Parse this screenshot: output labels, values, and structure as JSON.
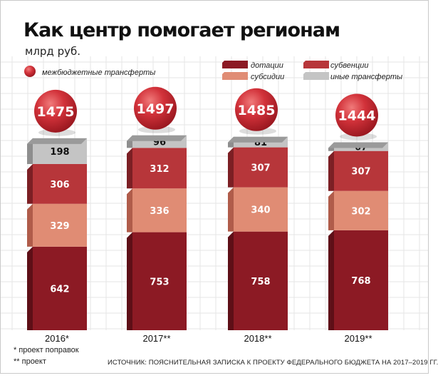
{
  "header": {
    "title": "Как центр помогает регионам",
    "subtitle": "млрд руб."
  },
  "legend": {
    "total": "межбюджетные трансферты",
    "dotacii": "дотации",
    "subvencii": "субвенции",
    "subsidii": "субсидии",
    "inye": "иные трансферты"
  },
  "colors": {
    "dotacii": "#8c1a24",
    "subsidii": "#e08c74",
    "subvencii": "#b7363a",
    "inye": "#c4c4c4",
    "total_circle": "#c0262d"
  },
  "chart_data": {
    "type": "bar",
    "stacked": true,
    "categories": [
      "2016*",
      "2017**",
      "2018**",
      "2019**"
    ],
    "series": [
      {
        "name": "дотации",
        "values": [
          642,
          753,
          758,
          768
        ]
      },
      {
        "name": "субсидии",
        "values": [
          329,
          336,
          340,
          302
        ]
      },
      {
        "name": "субвенции",
        "values": [
          306,
          312,
          307,
          307
        ]
      },
      {
        "name": "иные трансферты",
        "values": [
          198,
          96,
          81,
          67
        ]
      }
    ],
    "totals": [
      1475,
      1497,
      1485,
      1444
    ],
    "totals_label": "межбюджетные трансферты",
    "title": "Как центр помогает регионам",
    "ylabel": "млрд руб.",
    "grid": true,
    "legend_position": "top"
  },
  "footnotes": {
    "note1": "* проект поправок",
    "note2": "** проект",
    "source": "ИСТОЧНИК: ПОЯСНИТЕЛЬНАЯ ЗАПИСКА К ПРОЕКТУ ФЕДЕРАЛЬНОГО БЮДЖЕТА НА 2017–2019 ГГ."
  }
}
